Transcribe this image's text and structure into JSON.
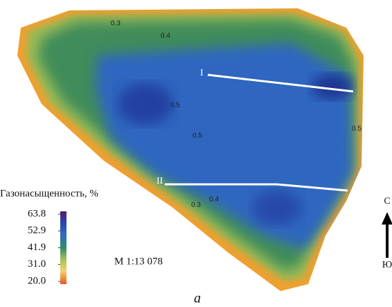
{
  "map": {
    "contour_labels": [
      "0.3",
      "0.4",
      "0.5",
      "0.5",
      "0.5",
      "0.4",
      "0.3"
    ],
    "sections": [
      "I",
      "II"
    ],
    "legend": {
      "title": "Газонасыщенность, %",
      "ticks": [
        63.8,
        52.9,
        41.9,
        {
          "value": 31,
          "label": "31.0"
        },
        {
          "value": 20,
          "label": "20.0"
        }
      ]
    },
    "scale": "М 1:13 078",
    "compass": {
      "north": "С",
      "south": "Ю"
    },
    "caption": "а"
  }
}
